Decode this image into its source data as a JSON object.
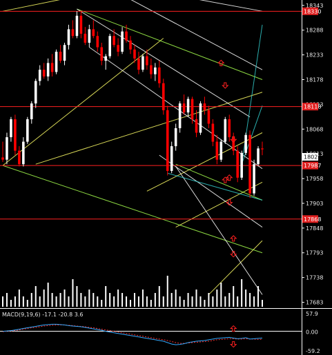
{
  "chart_data": {
    "type": "candlestick",
    "price_axis": {
      "range": [
        17670,
        18355
      ],
      "ticks": [
        "18343",
        "18288",
        "18233",
        "18178",
        "18123",
        "18068",
        "18013",
        "17958",
        "17903",
        "17848",
        "17793",
        "17738",
        "17683"
      ]
    },
    "current_price": {
      "value": 18023,
      "label": "18023"
    },
    "horizontal_levels": [
      {
        "value": 18330,
        "label": "18330"
      },
      {
        "value": 18118,
        "label": "18118"
      },
      {
        "value": 17987,
        "label": "17987"
      },
      {
        "value": 17868,
        "label": "17868"
      }
    ],
    "candles": [
      [
        18005,
        18040,
        17995,
        18000
      ],
      [
        18000,
        18060,
        17990,
        18050
      ],
      [
        18050,
        18095,
        18040,
        18090
      ],
      [
        18090,
        18100,
        18010,
        18020
      ],
      [
        18020,
        18030,
        17985,
        17990
      ],
      [
        17990,
        18050,
        17985,
        18040
      ],
      [
        18040,
        18095,
        18035,
        18090
      ],
      [
        18090,
        18130,
        18080,
        18125
      ],
      [
        18125,
        18180,
        18115,
        18175
      ],
      [
        18175,
        18210,
        18165,
        18200
      ],
      [
        18200,
        18215,
        18180,
        18185
      ],
      [
        18185,
        18225,
        18175,
        18215
      ],
      [
        18215,
        18235,
        18185,
        18195
      ],
      [
        18195,
        18245,
        18190,
        18240
      ],
      [
        18240,
        18255,
        18215,
        18220
      ],
      [
        18220,
        18260,
        18210,
        18255
      ],
      [
        18255,
        18300,
        18245,
        18290
      ],
      [
        18290,
        18310,
        18270,
        18275
      ],
      [
        18275,
        18330,
        18270,
        18320
      ],
      [
        18320,
        18330,
        18270,
        18280
      ],
      [
        18280,
        18295,
        18255,
        18260
      ],
      [
        18260,
        18300,
        18250,
        18290
      ],
      [
        18290,
        18310,
        18270,
        18275
      ],
      [
        18275,
        18285,
        18240,
        18250
      ],
      [
        18250,
        18260,
        18210,
        18220
      ],
      [
        18220,
        18235,
        18200,
        18230
      ],
      [
        18230,
        18280,
        18225,
        18275
      ],
      [
        18275,
        18290,
        18250,
        18255
      ],
      [
        18255,
        18270,
        18230,
        18240
      ],
      [
        18240,
        18295,
        18235,
        18285
      ],
      [
        18285,
        18300,
        18260,
        18265
      ],
      [
        18265,
        18275,
        18235,
        18245
      ],
      [
        18245,
        18255,
        18215,
        18225
      ],
      [
        18225,
        18240,
        18190,
        18200
      ],
      [
        18200,
        18235,
        18195,
        18230
      ],
      [
        18230,
        18245,
        18200,
        18210
      ],
      [
        18210,
        18225,
        18180,
        18190
      ],
      [
        18190,
        18215,
        18175,
        18205
      ],
      [
        18205,
        18220,
        18160,
        18170
      ],
      [
        18170,
        18180,
        18100,
        18110
      ],
      [
        18110,
        18120,
        17965,
        17975
      ],
      [
        17975,
        18040,
        17970,
        18030
      ],
      [
        18030,
        18080,
        18020,
        18070
      ],
      [
        18070,
        18130,
        18060,
        18125
      ],
      [
        18125,
        18145,
        18100,
        18105
      ],
      [
        18105,
        18140,
        18095,
        18135
      ],
      [
        18135,
        18140,
        18080,
        18090
      ],
      [
        18090,
        18110,
        18050,
        18060
      ],
      [
        18060,
        18130,
        18055,
        18125
      ],
      [
        18125,
        18140,
        18100,
        18110
      ],
      [
        18110,
        18120,
        18070,
        18080
      ],
      [
        18080,
        18090,
        18030,
        18040
      ],
      [
        18040,
        18055,
        17990,
        18000
      ],
      [
        18000,
        18045,
        17995,
        18040
      ],
      [
        18040,
        18095,
        18035,
        18090
      ],
      [
        18090,
        18100,
        18040,
        18050
      ],
      [
        18050,
        18060,
        18010,
        18020
      ],
      [
        18020,
        18030,
        17950,
        17960
      ],
      [
        17960,
        18020,
        17955,
        18015
      ],
      [
        18015,
        18060,
        18010,
        18055
      ],
      [
        18055,
        18065,
        17915,
        17925
      ],
      [
        17925,
        18000,
        17920,
        17990
      ],
      [
        17990,
        18030,
        17985,
        18025
      ],
      [
        18025,
        18040,
        18010,
        18023
      ]
    ],
    "overlay_lines": [
      {
        "color": "#ffff66",
        "points": [
          [
            0,
            17987
          ],
          [
            39,
            18270
          ]
        ]
      },
      {
        "color": "#ffff66",
        "points": [
          [
            8,
            17990
          ],
          [
            63,
            18150
          ]
        ]
      },
      {
        "color": "#ffff66",
        "points": [
          [
            0,
            18330
          ],
          [
            30,
            18420
          ]
        ]
      },
      {
        "color": "#ffff66",
        "points": [
          [
            35,
            17930
          ],
          [
            63,
            18060
          ]
        ]
      },
      {
        "color": "#ffff66",
        "points": [
          [
            42,
            17850
          ],
          [
            63,
            17950
          ]
        ]
      },
      {
        "color": "#ffff66",
        "points": [
          [
            50,
            17700
          ],
          [
            63,
            17820
          ]
        ]
      },
      {
        "color": "#a6ff4d",
        "points": [
          [
            18,
            18335
          ],
          [
            63,
            18178
          ]
        ]
      },
      {
        "color": "#a6ff4d",
        "points": [
          [
            0,
            17987
          ],
          [
            63,
            17793
          ]
        ]
      },
      {
        "color": "#a6ff4d",
        "points": [
          [
            42,
            17990
          ],
          [
            63,
            17910
          ]
        ]
      },
      {
        "color": "#ffffff",
        "points": [
          [
            18,
            18335
          ],
          [
            60,
            18095
          ]
        ]
      },
      {
        "color": "#ffffff",
        "points": [
          [
            30,
            18420
          ],
          [
            63,
            18330
          ]
        ]
      },
      {
        "color": "#ffffff",
        "points": [
          [
            21,
            18250
          ],
          [
            63,
            17980
          ]
        ]
      },
      {
        "color": "#ffffff",
        "points": [
          [
            38,
            18010
          ],
          [
            63,
            17850
          ]
        ]
      },
      {
        "color": "#ffffff",
        "points": [
          [
            25,
            18420
          ],
          [
            63,
            18200
          ]
        ]
      },
      {
        "color": "#ffffff",
        "points": [
          [
            42,
            17985
          ],
          [
            63,
            17700
          ]
        ]
      },
      {
        "color": "#33cccc",
        "points": [
          [
            40,
            17970
          ],
          [
            63,
            17910
          ]
        ]
      },
      {
        "color": "#33cccc",
        "points": [
          [
            58,
            17990
          ],
          [
            63,
            18300
          ]
        ]
      },
      {
        "color": "#33cccc",
        "points": [
          [
            58,
            17990
          ],
          [
            63,
            18120
          ]
        ]
      }
    ],
    "arrows": [
      {
        "dir": "up",
        "index": 53,
        "value": 18215
      },
      {
        "dir": "down",
        "index": 54,
        "value": 18165
      },
      {
        "dir": "down",
        "index": 56,
        "value": 18045
      },
      {
        "dir": "up",
        "index": 54,
        "value": 17955
      },
      {
        "dir": "down",
        "index": 55,
        "value": 17905
      },
      {
        "dir": "up",
        "index": 56,
        "value": 17825
      },
      {
        "dir": "down",
        "index": 56,
        "value": 17790
      },
      {
        "dir": "up",
        "index": 55,
        "value": 17960
      }
    ],
    "volume": [
      3,
      4,
      2,
      3,
      5,
      3,
      2,
      4,
      6,
      3,
      5,
      7,
      4,
      3,
      4,
      5,
      3,
      8,
      6,
      4,
      3,
      5,
      4,
      3,
      2,
      6,
      4,
      3,
      5,
      4,
      3,
      2,
      4,
      3,
      5,
      3,
      2,
      4,
      6,
      3,
      9,
      4,
      5,
      3,
      2,
      4,
      3,
      5,
      3,
      2,
      4,
      3,
      5,
      7,
      3,
      4,
      6,
      3,
      8,
      5,
      4,
      3,
      6,
      2
    ],
    "macd": {
      "label": "MACD(9,19,6) -17.1 -20.8 3.6",
      "ticks": [
        "57.9",
        "0.00",
        "-59.2"
      ],
      "range": [
        -59.2,
        57.9
      ],
      "macd_line": [
        2,
        3,
        4,
        6,
        8,
        10,
        12,
        14,
        16,
        18,
        20,
        21,
        22,
        22,
        21,
        20,
        18,
        17,
        16,
        15,
        13,
        11,
        9,
        7,
        5,
        2,
        0,
        -2,
        -4,
        -6,
        -8,
        -10,
        -12,
        -14,
        -16,
        -18,
        -20,
        -22,
        -24,
        -26,
        -30,
        -34,
        -36,
        -35,
        -33,
        -30,
        -28,
        -26,
        -25,
        -24,
        -22,
        -20,
        -18,
        -17,
        -16,
        -15,
        -17,
        -19,
        -18,
        -16,
        -20,
        -19,
        -18,
        -17.1
      ],
      "signal_line": [
        1,
        2,
        3,
        4,
        6,
        8,
        10,
        12,
        13,
        15,
        17,
        18,
        19,
        20,
        20,
        20,
        19,
        18,
        17,
        16,
        15,
        13,
        12,
        10,
        8,
        6,
        4,
        2,
        0,
        -2,
        -4,
        -6,
        -8,
        -10,
        -12,
        -14,
        -16,
        -18,
        -20,
        -22,
        -24,
        -27,
        -30,
        -32,
        -32,
        -31,
        -30,
        -29,
        -28,
        -27,
        -26,
        -24,
        -22,
        -21,
        -20,
        -19,
        -19,
        -20,
        -20,
        -19,
        -20,
        -20,
        -21,
        -20.8
      ],
      "arrows": [
        {
          "dir": "up",
          "index": 56,
          "value": 10
        },
        {
          "dir": "down",
          "index": 56,
          "value": -35
        }
      ]
    },
    "colors": {
      "background": "#000000",
      "up_candle": "#ffffff",
      "down_candle": "#ff0000",
      "level_line": "#ff2020",
      "level_tag": "#e02020",
      "current_tag": "#ffffff",
      "volume": "#ffffff",
      "macd_line": "#33aaff",
      "signal_line": "#ff3333",
      "arrow": "#ff2020",
      "axis_divider": "#ffffff"
    }
  }
}
